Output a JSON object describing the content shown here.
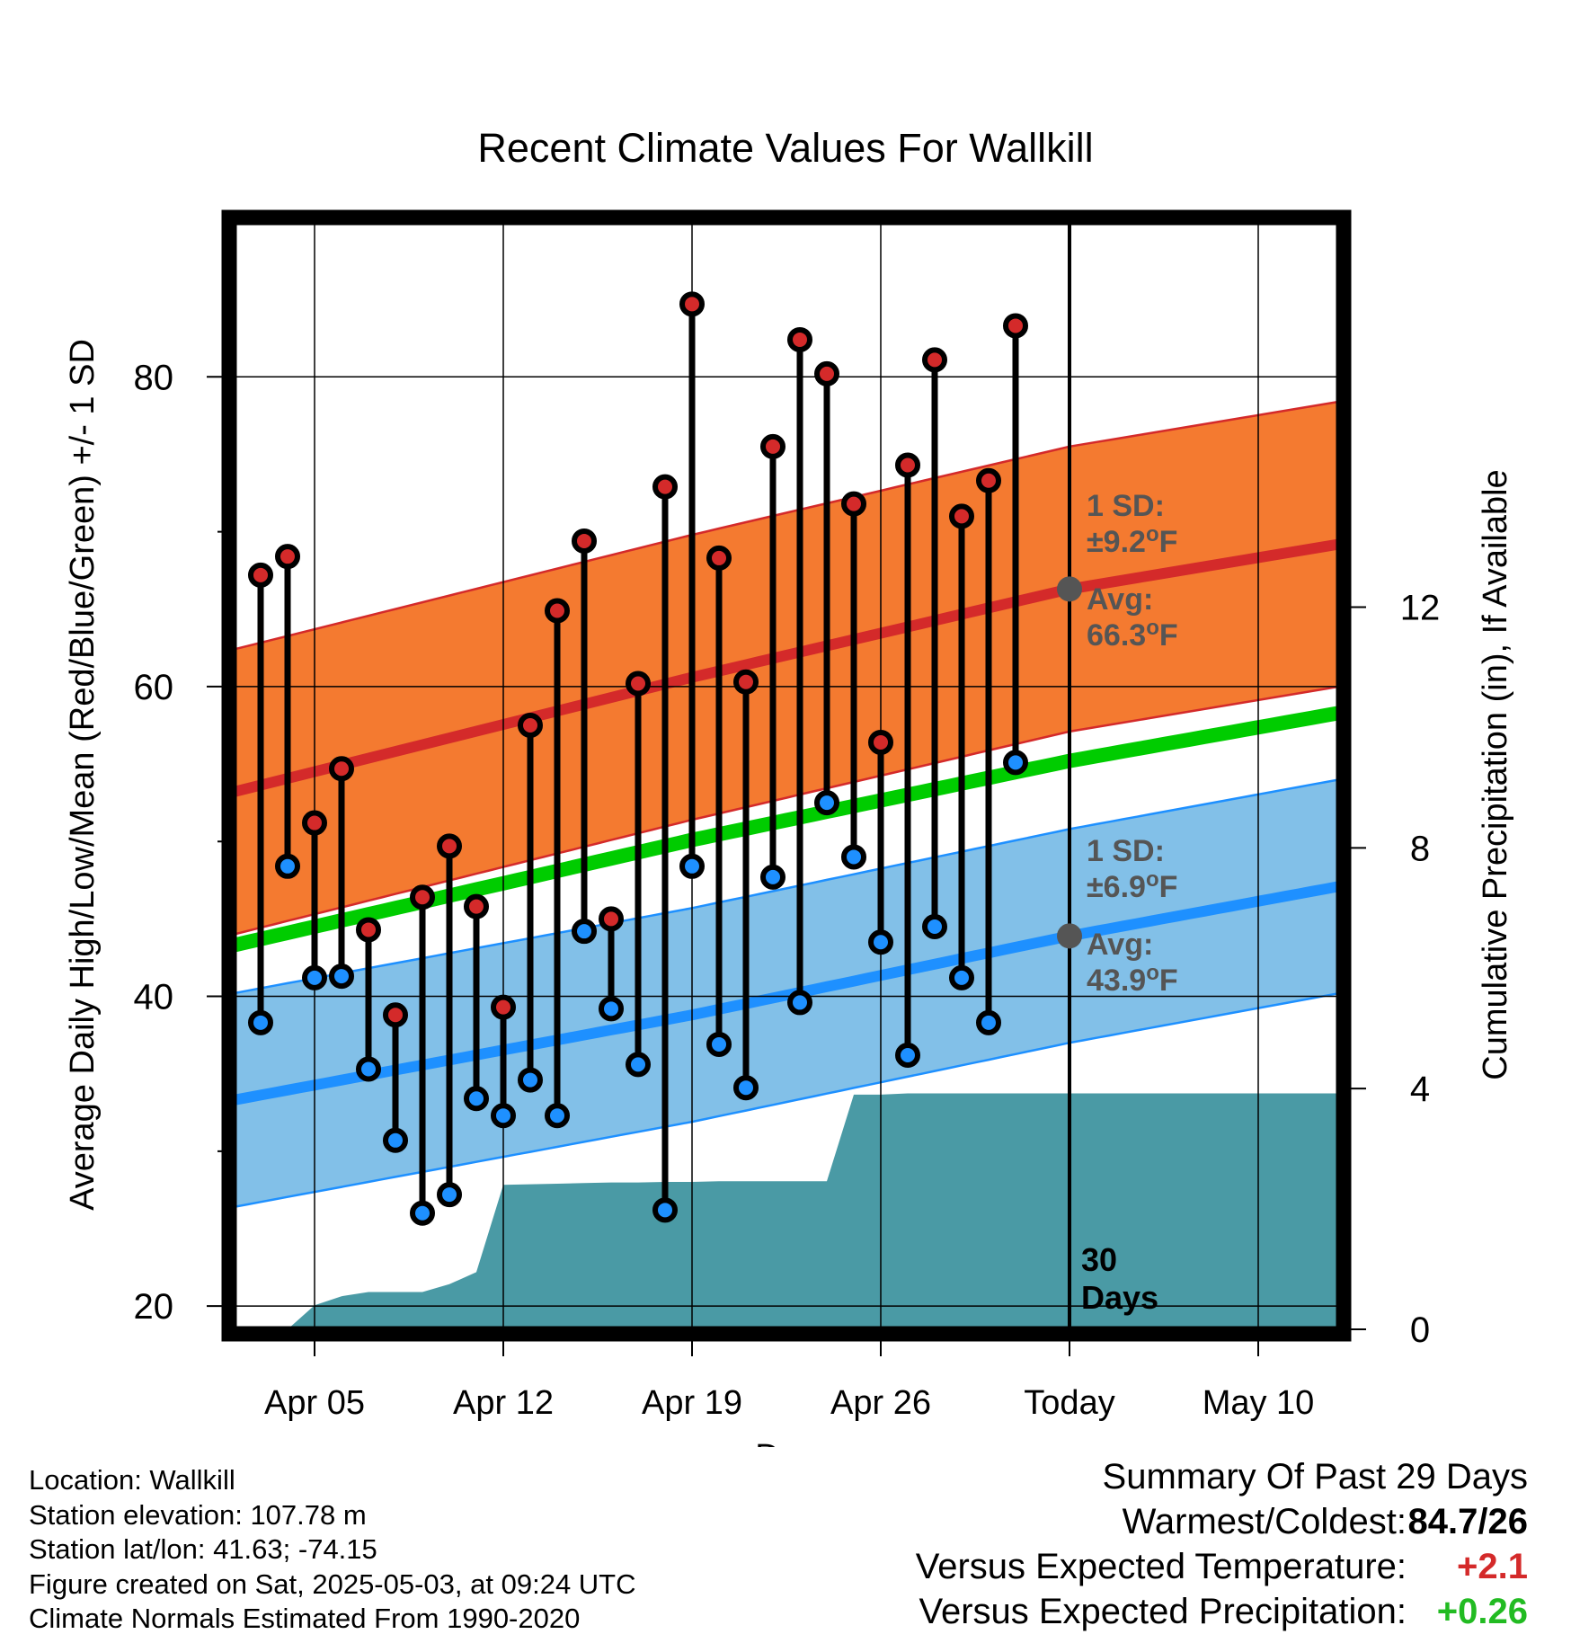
{
  "chart_data": {
    "type": "line",
    "title": "Recent Climate Values For Wallkill",
    "xlabel": "Day",
    "ylabel": "Average Daily High/Low/Mean (Red/Blue/Green) +/- 1 SD",
    "y2label": "Cumulative Precipitation (in), If Available",
    "x_range": [
      "Apr 02",
      "May 13"
    ],
    "ylim": [
      18.5,
      90
    ],
    "y2lim": [
      0,
      18.4
    ],
    "y_ticks": [
      20,
      40,
      60,
      80
    ],
    "y_minor_ticks": [
      30,
      50,
      70
    ],
    "y2_ticks": [
      0,
      4,
      8,
      12
    ],
    "x_ticks": [
      {
        "date": "Apr 05",
        "label": "Apr 05"
      },
      {
        "date": "Apr 12",
        "label": "Apr 12"
      },
      {
        "date": "Apr 19",
        "label": "Apr 19"
      },
      {
        "date": "Apr 26",
        "label": "Apr 26"
      },
      {
        "date": "May 03",
        "label": "Today"
      },
      {
        "date": "May 10",
        "label": "May 10"
      }
    ],
    "today": "May 03",
    "grid": true,
    "colors": {
      "high_band": "#f47a30",
      "high_line": "#d42a2a",
      "low_band": "#82c0e8",
      "low_line": "#1e90ff",
      "mean_line": "#00cc00",
      "precip": "#4a9aa5",
      "high_marker": "#d42a2a",
      "low_marker": "#1e90ff",
      "avg_marker": "#555555"
    },
    "normals": {
      "dates": [
        "Apr 02",
        "Apr 19",
        "May 03",
        "May 13"
      ],
      "high_avg": [
        53.2,
        60.6,
        66.3,
        69.2
      ],
      "high_sd": 9.2,
      "low_avg": [
        33.3,
        38.8,
        43.9,
        47.1
      ],
      "low_sd": 6.9,
      "mean": [
        43.3,
        50.1,
        55.2,
        58.3
      ]
    },
    "high_label": {
      "sd": "1 SD:",
      "sd_value": "±9.2°F",
      "avg": "Avg:",
      "avg_value": "66.3°F",
      "avg_num": 66.3
    },
    "low_label": {
      "sd": "1 SD:",
      "sd_value": "±6.9°F",
      "avg": "Avg:",
      "avg_value": "43.9°F",
      "avg_num": 43.9
    },
    "days_label": [
      "30",
      "Days"
    ],
    "series": [
      {
        "name": "High",
        "dates": [
          "Apr 03",
          "Apr 04",
          "Apr 05",
          "Apr 06",
          "Apr 07",
          "Apr 08",
          "Apr 09",
          "Apr 10",
          "Apr 11",
          "Apr 12",
          "Apr 13",
          "Apr 14",
          "Apr 15",
          "Apr 16",
          "Apr 17",
          "Apr 18",
          "Apr 19",
          "Apr 20",
          "Apr 21",
          "Apr 22",
          "Apr 23",
          "Apr 24",
          "Apr 25",
          "Apr 26",
          "Apr 27",
          "Apr 28",
          "Apr 29",
          "Apr 30",
          "May 01",
          "May 02"
        ],
        "values": [
          67.2,
          68.4,
          51.2,
          54.7,
          44.3,
          38.8,
          46.4,
          49.7,
          45.8,
          39.3,
          57.5,
          64.9,
          69.4,
          45.0,
          60.2,
          72.9,
          84.7,
          68.3,
          60.3,
          75.5,
          82.4,
          80.2,
          71.8,
          56.4,
          74.3,
          81.1,
          71.0,
          73.3,
          83.3,
          null
        ]
      },
      {
        "name": "Low",
        "dates": [
          "Apr 03",
          "Apr 04",
          "Apr 05",
          "Apr 06",
          "Apr 07",
          "Apr 08",
          "Apr 09",
          "Apr 10",
          "Apr 11",
          "Apr 12",
          "Apr 13",
          "Apr 14",
          "Apr 15",
          "Apr 16",
          "Apr 17",
          "Apr 18",
          "Apr 19",
          "Apr 20",
          "Apr 21",
          "Apr 22",
          "Apr 23",
          "Apr 24",
          "Apr 25",
          "Apr 26",
          "Apr 27",
          "Apr 28",
          "Apr 29",
          "Apr 30",
          "May 01",
          "May 02"
        ],
        "values": [
          38.3,
          48.4,
          41.2,
          41.3,
          35.3,
          30.7,
          26.0,
          27.2,
          33.4,
          32.3,
          34.6,
          32.3,
          44.2,
          39.2,
          35.6,
          26.2,
          48.4,
          36.9,
          34.1,
          47.7,
          39.6,
          52.5,
          49.0,
          43.5,
          36.2,
          44.5,
          41.2,
          38.3,
          55.1,
          null
        ]
      },
      {
        "name": "Precipitation",
        "dates": [
          "Apr 02",
          "Apr 03",
          "Apr 04",
          "Apr 05",
          "Apr 06",
          "Apr 07",
          "Apr 08",
          "Apr 09",
          "Apr 10",
          "Apr 11",
          "Apr 12",
          "Apr 13",
          "Apr 14",
          "Apr 15",
          "Apr 16",
          "Apr 17",
          "Apr 18",
          "Apr 19",
          "Apr 20",
          "Apr 21",
          "Apr 22",
          "Apr 23",
          "Apr 24",
          "Apr 25",
          "Apr 26",
          "Apr 27",
          "Apr 28",
          "Apr 29",
          "Apr 30",
          "May 01",
          "May 02",
          "May 03",
          "May 13"
        ],
        "values": [
          0,
          0,
          0,
          0.4,
          0.55,
          0.62,
          0.62,
          0.62,
          0.75,
          0.95,
          2.4,
          2.41,
          2.42,
          2.43,
          2.44,
          2.44,
          2.45,
          2.45,
          2.46,
          2.46,
          2.46,
          2.46,
          2.46,
          3.9,
          3.9,
          3.92,
          3.92,
          3.92,
          3.92,
          3.92,
          3.92,
          3.92,
          3.92
        ]
      }
    ]
  },
  "footer": {
    "location": "Location: Wallkill",
    "elevation": "Station elevation: 107.78 m",
    "latlon": "Station lat/lon: 41.63; -74.15",
    "created": "Figure created on Sat, 2025-05-03, at 09:24 UTC",
    "normals": "Climate Normals Estimated From 1990-2020"
  },
  "summary": {
    "title": "Summary Of Past 29 Days",
    "warmest_label": "Warmest/Coldest:",
    "warmest_value": "84.7/26",
    "temp_label": "Versus Expected Temperature:",
    "temp_value": "+2.1",
    "precip_label": "Versus Expected Precipitation:",
    "precip_value": "+0.26",
    "temp_color": "#d42a2a",
    "precip_color": "#22bb22"
  }
}
